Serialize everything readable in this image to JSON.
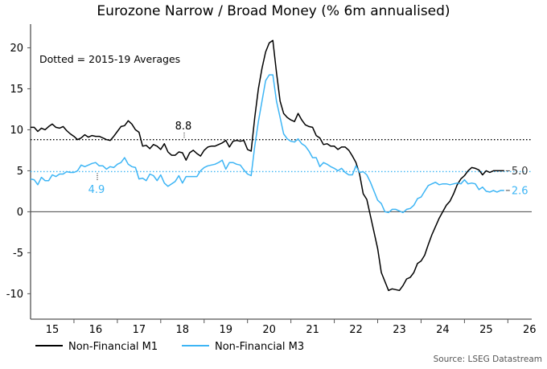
{
  "chart_data": {
    "type": "line",
    "title": "Eurozone Narrow / Broad Money (% 6m annualised)",
    "annotation": "Dotted = 2015-19 Averages",
    "source": "Source: LSEG Datastream",
    "xlabel": "",
    "ylabel": "",
    "xlim": [
      2015,
      2026.55
    ],
    "ylim": [
      -13.1,
      22.4
    ],
    "x_tick_labels": [
      "15",
      "16",
      "17",
      "18",
      "19",
      "20",
      "21",
      "22",
      "23",
      "24",
      "25",
      "26"
    ],
    "y_ticks": [
      -10,
      -5,
      0,
      5,
      10,
      15,
      20
    ],
    "x_start": 2015.0,
    "x_step_months": 1,
    "legend_position": "bottom-left",
    "series": [
      {
        "name": "Non-Financial M1",
        "color": "#000000",
        "average": 8.8,
        "average_label": "8.8",
        "last_label": "5.0",
        "values": [
          10.3,
          10.3,
          9.8,
          10.2,
          10.0,
          10.4,
          10.7,
          10.3,
          10.2,
          10.4,
          9.9,
          9.5,
          9.2,
          8.8,
          9.0,
          9.4,
          9.1,
          9.3,
          9.2,
          9.2,
          9.0,
          8.8,
          8.7,
          9.2,
          9.8,
          10.4,
          10.5,
          11.1,
          10.7,
          10.0,
          9.7,
          8.0,
          8.1,
          7.7,
          8.2,
          8.0,
          7.6,
          8.3,
          7.3,
          6.9,
          6.9,
          7.3,
          7.2,
          6.3,
          7.2,
          7.5,
          7.1,
          6.8,
          7.5,
          7.9,
          8.0,
          8.0,
          8.2,
          8.4,
          8.7,
          7.9,
          8.6,
          8.7,
          8.6,
          8.7,
          7.6,
          7.4,
          11.5,
          15.0,
          17.5,
          19.5,
          20.6,
          20.9,
          17.0,
          13.5,
          12.0,
          11.5,
          11.2,
          11.0,
          12.0,
          11.2,
          10.6,
          10.4,
          10.3,
          9.3,
          9.0,
          8.2,
          8.3,
          8.0,
          8.0,
          7.6,
          7.9,
          7.9,
          7.5,
          6.8,
          6.0,
          4.6,
          2.2,
          1.5,
          -0.5,
          -2.5,
          -4.5,
          -7.4,
          -8.5,
          -9.6,
          -9.4,
          -9.5,
          -9.6,
          -9.0,
          -8.2,
          -8.0,
          -7.4,
          -6.3,
          -6.0,
          -5.3,
          -4.0,
          -2.8,
          -1.8,
          -0.8,
          0.0,
          0.8,
          1.3,
          2.2,
          3.3,
          4.0,
          4.4,
          5.0,
          5.4,
          5.3,
          5.1,
          4.5,
          5.0,
          4.8,
          5.0,
          5.0,
          5.0,
          5.0
        ]
      },
      {
        "name": "Non-Financial M3",
        "color": "#3db5f5",
        "average": 4.9,
        "average_label": "4.9",
        "last_label": "2.6",
        "values": [
          4.0,
          3.9,
          3.3,
          4.2,
          3.8,
          3.8,
          4.5,
          4.3,
          4.6,
          4.6,
          4.9,
          4.8,
          4.8,
          5.0,
          5.7,
          5.5,
          5.7,
          5.9,
          6.0,
          5.6,
          5.6,
          5.2,
          5.5,
          5.4,
          5.8,
          6.0,
          6.6,
          5.8,
          5.5,
          5.4,
          4.0,
          4.1,
          3.8,
          4.6,
          4.4,
          3.8,
          4.5,
          3.5,
          3.1,
          3.4,
          3.7,
          4.4,
          3.5,
          4.3,
          4.3,
          4.3,
          4.3,
          5.0,
          5.4,
          5.6,
          5.7,
          5.8,
          6.0,
          6.3,
          5.2,
          6.0,
          6.0,
          5.8,
          5.7,
          5.1,
          4.6,
          4.4,
          8.0,
          11.0,
          13.5,
          16.0,
          16.7,
          16.7,
          13.5,
          11.5,
          9.5,
          8.9,
          8.6,
          8.5,
          8.9,
          8.3,
          8.0,
          7.4,
          6.6,
          6.6,
          5.5,
          6.0,
          5.8,
          5.5,
          5.3,
          5.0,
          5.3,
          4.8,
          4.5,
          4.5,
          5.6,
          4.8,
          4.9,
          4.5,
          3.6,
          2.5,
          1.4,
          1.0,
          0.0,
          -0.1,
          0.3,
          0.3,
          0.1,
          -0.1,
          0.3,
          0.4,
          0.8,
          1.6,
          1.8,
          2.5,
          3.2,
          3.4,
          3.6,
          3.3,
          3.4,
          3.4,
          3.3,
          3.4,
          3.5,
          3.4,
          3.9,
          3.4,
          3.5,
          3.4,
          2.7,
          3.0,
          2.5,
          2.4,
          2.6,
          2.4,
          2.6,
          2.6
        ]
      }
    ]
  }
}
